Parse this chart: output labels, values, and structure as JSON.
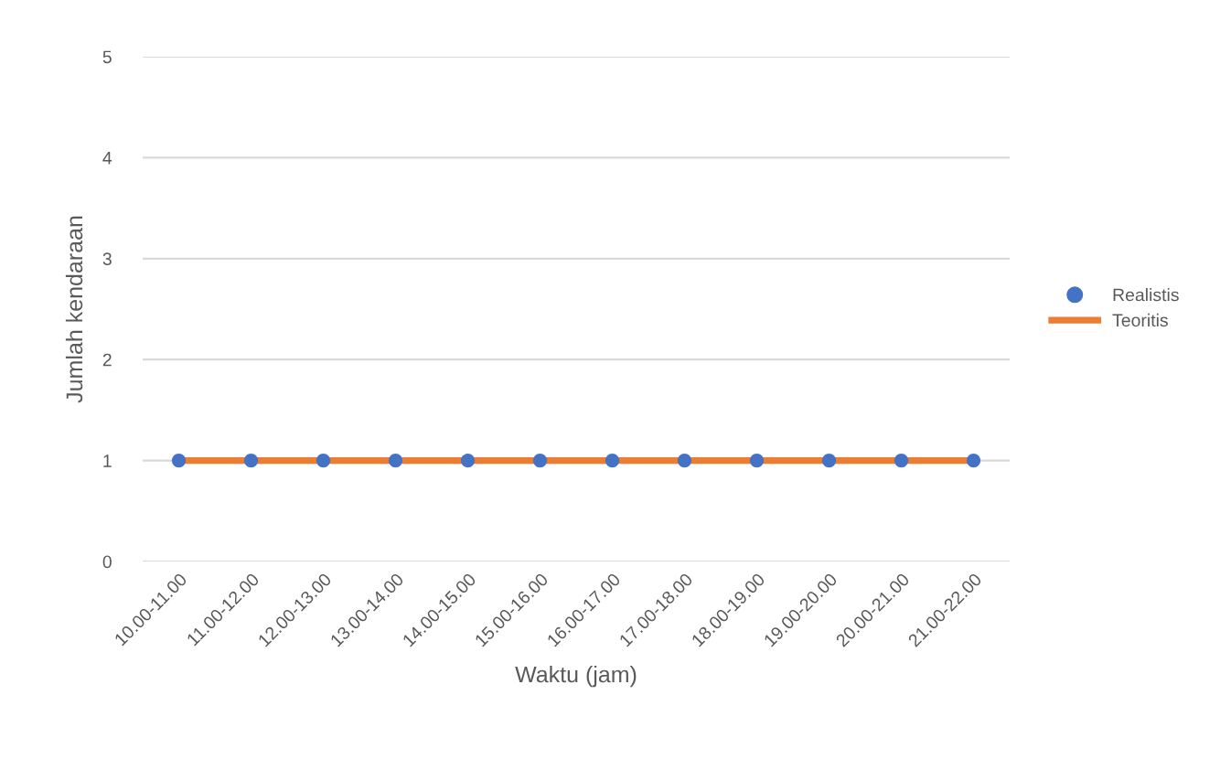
{
  "chart_data": {
    "type": "line",
    "xlabel": "Waktu (jam)",
    "ylabel": "Jumlah kendaraan",
    "categories": [
      "10.00-11.00",
      "11.00-12.00",
      "12.00-13.00",
      "13.00-14.00",
      "14.00-15.00",
      "15.00-16.00",
      "16.00-17.00",
      "17.00-18.00",
      "18.00-19.00",
      "19.00-20.00",
      "20.00-21.00",
      "21.00-22.00"
    ],
    "series": [
      {
        "name": "Realistis",
        "type": "scatter",
        "color": "#4472c4",
        "marker": "circle",
        "values": [
          1,
          1,
          1,
          1,
          1,
          1,
          1,
          1,
          1,
          1,
          1,
          1
        ]
      },
      {
        "name": "Teoritis",
        "color": "#ed7d31",
        "values": [
          1,
          1,
          1,
          1,
          1,
          1,
          1,
          1,
          1,
          1,
          1,
          1
        ]
      }
    ],
    "ylim": [
      0,
      5
    ],
    "yticks": [
      0,
      1,
      2,
      3,
      4,
      5
    ],
    "grid": "y",
    "legend": "right"
  }
}
